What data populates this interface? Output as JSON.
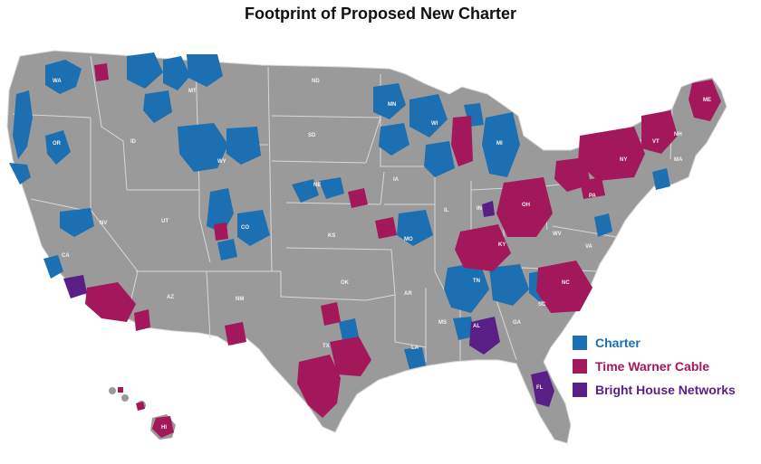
{
  "title": "Footprint of Proposed New Charter",
  "colors": {
    "land": "#9a9a9a",
    "border": "#d8d8d8",
    "charter": "#1c6fb0",
    "time_warner_cable": "#a3185b",
    "bright_house_networks": "#5a1f86"
  },
  "legend": [
    {
      "label": "Charter",
      "color": "#1c6fb0",
      "text_color": "#1c6fb0"
    },
    {
      "label": "Time Warner Cable",
      "color": "#a3185b",
      "text_color": "#a3185b"
    },
    {
      "label": "Bright House Networks",
      "color": "#5a1f86",
      "text_color": "#5a1f86"
    }
  ],
  "state_labels": [
    "WA",
    "OR",
    "CA",
    "NV",
    "ID",
    "MT",
    "WY",
    "UT",
    "CO",
    "AZ",
    "NM",
    "ND",
    "SD",
    "NE",
    "KS",
    "OK",
    "TX",
    "MN",
    "IA",
    "MO",
    "AR",
    "LA",
    "WI",
    "IL",
    "MI",
    "IN",
    "OH",
    "KY",
    "TN",
    "MS",
    "AL",
    "GA",
    "FL",
    "SC",
    "NC",
    "VA",
    "WV",
    "PA",
    "NY",
    "VT",
    "NH",
    "ME",
    "MA",
    "HI"
  ]
}
